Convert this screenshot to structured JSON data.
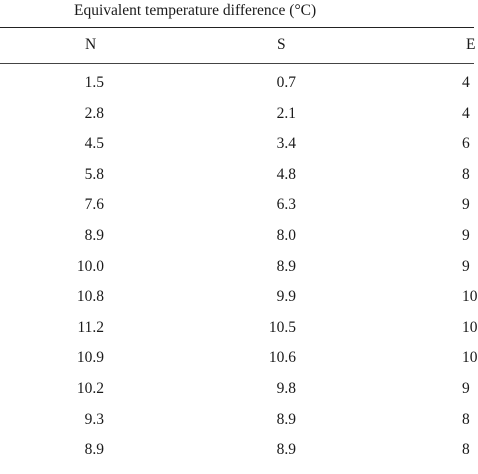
{
  "table": {
    "title": "Equivalent temperature difference (°C)",
    "headers": [
      "N",
      "S",
      "E"
    ],
    "rows": [
      [
        "1.5",
        "0.7",
        "4"
      ],
      [
        "2.8",
        "2.1",
        "4"
      ],
      [
        "4.5",
        "3.4",
        "6"
      ],
      [
        "5.8",
        "4.8",
        "8"
      ],
      [
        "7.6",
        "6.3",
        "9"
      ],
      [
        "8.9",
        "8.0",
        "9"
      ],
      [
        "10.0",
        "8.9",
        "9"
      ],
      [
        "10.8",
        "9.9",
        "10"
      ],
      [
        "11.2",
        "10.5",
        "10"
      ],
      [
        "10.9",
        "10.6",
        "10"
      ],
      [
        "10.2",
        "9.8",
        "9"
      ],
      [
        "9.3",
        "8.9",
        "8"
      ],
      [
        "8.9",
        "8.9",
        "8"
      ]
    ]
  }
}
